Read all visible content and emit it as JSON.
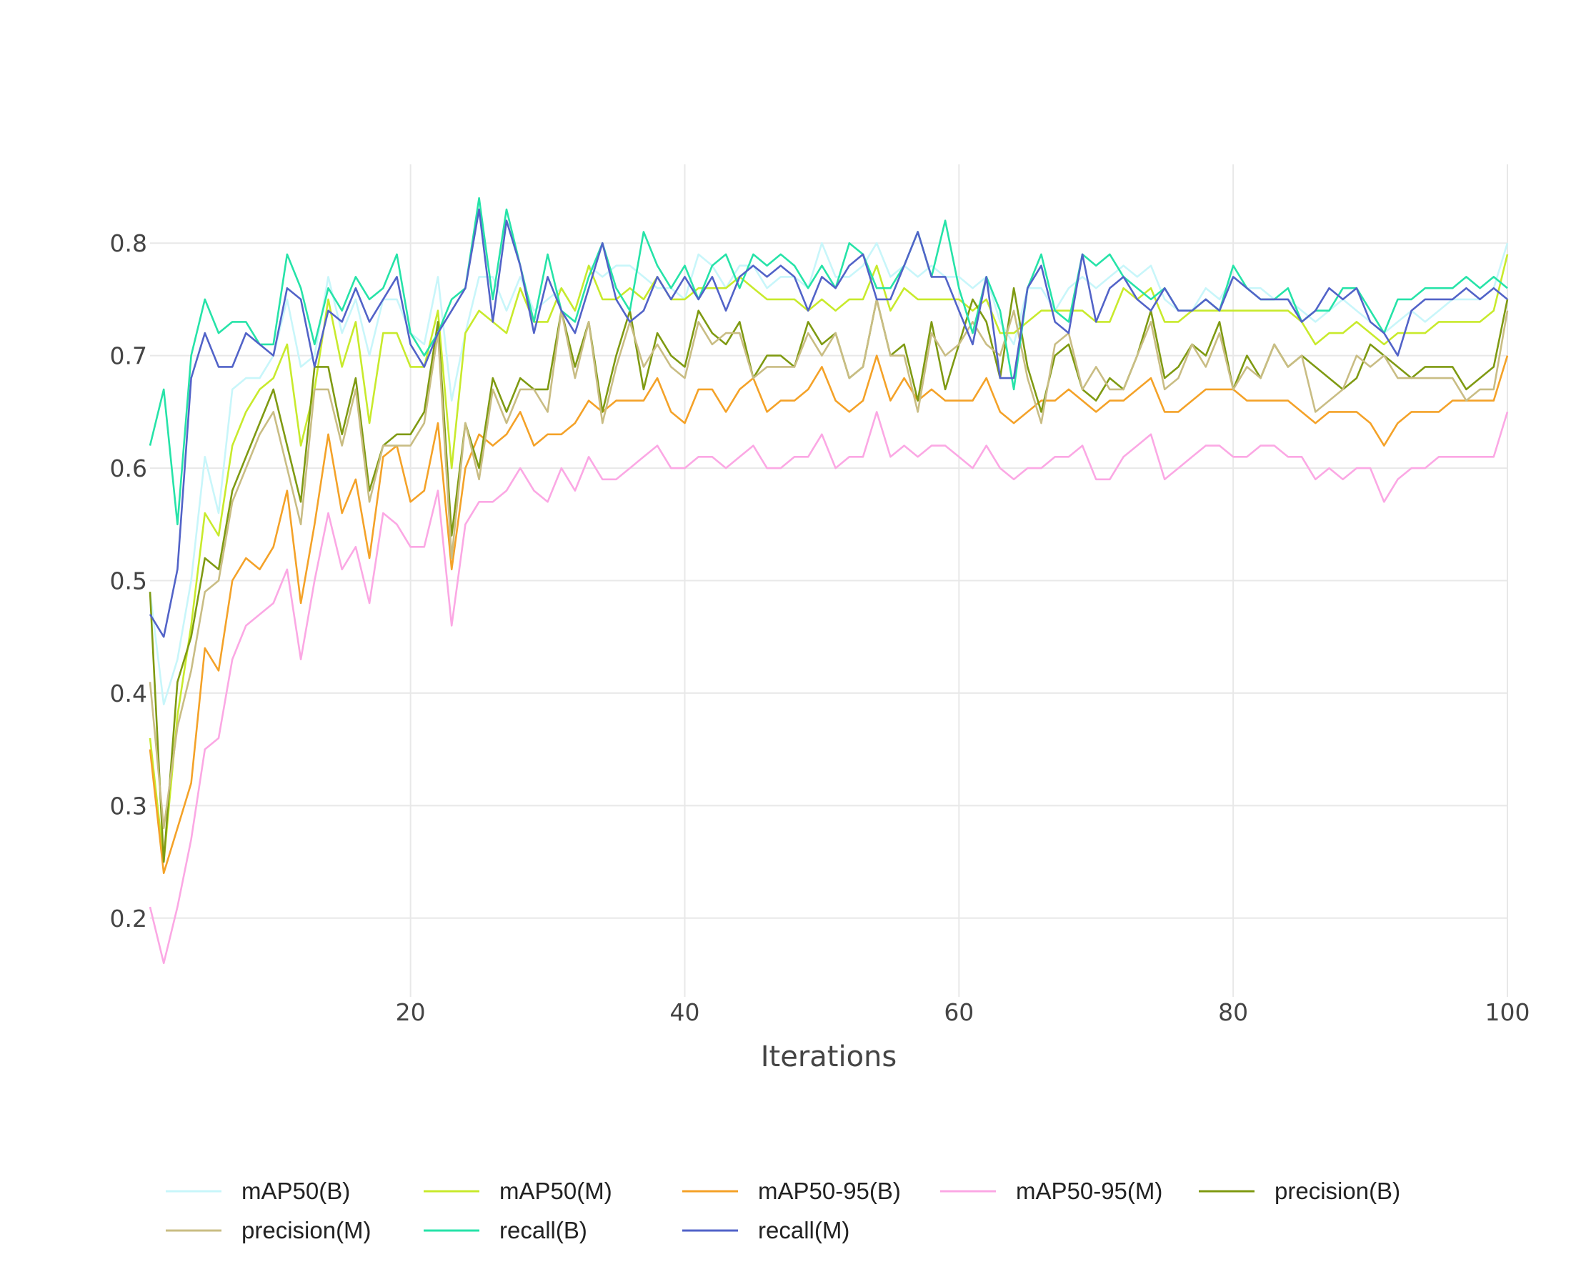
{
  "chart_data": {
    "type": "line",
    "title": "",
    "xlabel": "Iterations",
    "ylabel": "",
    "xlim": [
      1,
      100
    ],
    "ylim": [
      0.13,
      0.87
    ],
    "x_ticks": [
      20,
      40,
      60,
      80,
      100
    ],
    "y_ticks": [
      0.2,
      0.3,
      0.4,
      0.5,
      0.6,
      0.7,
      0.8
    ],
    "grid": true,
    "legend_placement": "bottom",
    "x": [
      1,
      2,
      3,
      4,
      5,
      6,
      7,
      8,
      9,
      10,
      11,
      12,
      13,
      14,
      15,
      16,
      17,
      18,
      19,
      20,
      21,
      22,
      23,
      24,
      25,
      26,
      27,
      28,
      29,
      30,
      31,
      32,
      33,
      34,
      35,
      36,
      37,
      38,
      39,
      40,
      41,
      42,
      43,
      44,
      45,
      46,
      47,
      48,
      49,
      50,
      51,
      52,
      53,
      54,
      55,
      56,
      57,
      58,
      59,
      60,
      61,
      62,
      63,
      64,
      65,
      66,
      67,
      68,
      69,
      70,
      71,
      72,
      73,
      74,
      75,
      76,
      77,
      78,
      79,
      80,
      81,
      82,
      83,
      84,
      85,
      86,
      87,
      88,
      89,
      90,
      91,
      92,
      93,
      94,
      95,
      96,
      97,
      98,
      99,
      100
    ],
    "series": [
      {
        "name": "mAP50(B)",
        "color": "#c8f6fa",
        "values": [
          0.49,
          0.39,
          0.43,
          0.5,
          0.61,
          0.56,
          0.67,
          0.68,
          0.68,
          0.7,
          0.75,
          0.69,
          0.7,
          0.77,
          0.72,
          0.75,
          0.7,
          0.75,
          0.75,
          0.72,
          0.71,
          0.77,
          0.66,
          0.72,
          0.77,
          0.77,
          0.74,
          0.77,
          0.74,
          0.75,
          0.76,
          0.74,
          0.78,
          0.77,
          0.78,
          0.78,
          0.77,
          0.76,
          0.76,
          0.75,
          0.79,
          0.78,
          0.76,
          0.78,
          0.78,
          0.76,
          0.77,
          0.77,
          0.76,
          0.8,
          0.77,
          0.77,
          0.78,
          0.8,
          0.77,
          0.78,
          0.77,
          0.78,
          0.77,
          0.77,
          0.76,
          0.77,
          0.73,
          0.71,
          0.76,
          0.76,
          0.74,
          0.76,
          0.77,
          0.76,
          0.77,
          0.78,
          0.77,
          0.78,
          0.75,
          0.74,
          0.74,
          0.76,
          0.75,
          0.77,
          0.76,
          0.76,
          0.75,
          0.75,
          0.74,
          0.73,
          0.74,
          0.75,
          0.74,
          0.73,
          0.72,
          0.73,
          0.74,
          0.73,
          0.74,
          0.75,
          0.75,
          0.75,
          0.76,
          0.8
        ]
      },
      {
        "name": "mAP50(M)",
        "color": "#c8ea2c",
        "values": [
          0.36,
          0.25,
          0.38,
          0.46,
          0.56,
          0.54,
          0.62,
          0.65,
          0.67,
          0.68,
          0.71,
          0.62,
          0.67,
          0.75,
          0.69,
          0.73,
          0.64,
          0.72,
          0.72,
          0.69,
          0.69,
          0.74,
          0.6,
          0.72,
          0.74,
          0.73,
          0.72,
          0.76,
          0.73,
          0.73,
          0.76,
          0.74,
          0.78,
          0.75,
          0.75,
          0.76,
          0.75,
          0.77,
          0.75,
          0.75,
          0.76,
          0.76,
          0.76,
          0.77,
          0.76,
          0.75,
          0.75,
          0.75,
          0.74,
          0.75,
          0.74,
          0.75,
          0.75,
          0.78,
          0.74,
          0.76,
          0.75,
          0.75,
          0.75,
          0.75,
          0.74,
          0.75,
          0.72,
          0.72,
          0.73,
          0.74,
          0.74,
          0.74,
          0.74,
          0.73,
          0.73,
          0.76,
          0.75,
          0.76,
          0.73,
          0.73,
          0.74,
          0.74,
          0.74,
          0.74,
          0.74,
          0.74,
          0.74,
          0.74,
          0.73,
          0.71,
          0.72,
          0.72,
          0.73,
          0.72,
          0.71,
          0.72,
          0.72,
          0.72,
          0.73,
          0.73,
          0.73,
          0.73,
          0.74,
          0.79
        ]
      },
      {
        "name": "mAP50-95(B)",
        "color": "#f4a228",
        "values": [
          0.35,
          0.24,
          0.28,
          0.32,
          0.44,
          0.42,
          0.5,
          0.52,
          0.51,
          0.53,
          0.58,
          0.48,
          0.55,
          0.63,
          0.56,
          0.59,
          0.52,
          0.61,
          0.62,
          0.57,
          0.58,
          0.64,
          0.51,
          0.6,
          0.63,
          0.62,
          0.63,
          0.65,
          0.62,
          0.63,
          0.63,
          0.64,
          0.66,
          0.65,
          0.66,
          0.66,
          0.66,
          0.68,
          0.65,
          0.64,
          0.67,
          0.67,
          0.65,
          0.67,
          0.68,
          0.65,
          0.66,
          0.66,
          0.67,
          0.69,
          0.66,
          0.65,
          0.66,
          0.7,
          0.66,
          0.68,
          0.66,
          0.67,
          0.66,
          0.66,
          0.66,
          0.68,
          0.65,
          0.64,
          0.65,
          0.66,
          0.66,
          0.67,
          0.66,
          0.65,
          0.66,
          0.66,
          0.67,
          0.68,
          0.65,
          0.65,
          0.66,
          0.67,
          0.67,
          0.67,
          0.66,
          0.66,
          0.66,
          0.66,
          0.65,
          0.64,
          0.65,
          0.65,
          0.65,
          0.64,
          0.62,
          0.64,
          0.65,
          0.65,
          0.65,
          0.66,
          0.66,
          0.66,
          0.66,
          0.7
        ]
      },
      {
        "name": "mAP50-95(M)",
        "color": "#fba8e4",
        "values": [
          0.21,
          0.16,
          0.21,
          0.27,
          0.35,
          0.36,
          0.43,
          0.46,
          0.47,
          0.48,
          0.51,
          0.43,
          0.5,
          0.56,
          0.51,
          0.53,
          0.48,
          0.56,
          0.55,
          0.53,
          0.53,
          0.58,
          0.46,
          0.55,
          0.57,
          0.57,
          0.58,
          0.6,
          0.58,
          0.57,
          0.6,
          0.58,
          0.61,
          0.59,
          0.59,
          0.6,
          0.61,
          0.62,
          0.6,
          0.6,
          0.61,
          0.61,
          0.6,
          0.61,
          0.62,
          0.6,
          0.6,
          0.61,
          0.61,
          0.63,
          0.6,
          0.61,
          0.61,
          0.65,
          0.61,
          0.62,
          0.61,
          0.62,
          0.62,
          0.61,
          0.6,
          0.62,
          0.6,
          0.59,
          0.6,
          0.6,
          0.61,
          0.61,
          0.62,
          0.59,
          0.59,
          0.61,
          0.62,
          0.63,
          0.59,
          0.6,
          0.61,
          0.62,
          0.62,
          0.61,
          0.61,
          0.62,
          0.62,
          0.61,
          0.61,
          0.59,
          0.6,
          0.59,
          0.6,
          0.6,
          0.57,
          0.59,
          0.6,
          0.6,
          0.61,
          0.61,
          0.61,
          0.61,
          0.61,
          0.65
        ]
      },
      {
        "name": "precision(B)",
        "color": "#7f9a12",
        "values": [
          0.49,
          0.25,
          0.41,
          0.45,
          0.52,
          0.51,
          0.58,
          0.61,
          0.64,
          0.67,
          0.62,
          0.57,
          0.69,
          0.69,
          0.63,
          0.68,
          0.58,
          0.62,
          0.63,
          0.63,
          0.65,
          0.73,
          0.54,
          0.64,
          0.6,
          0.68,
          0.65,
          0.68,
          0.67,
          0.67,
          0.74,
          0.69,
          0.73,
          0.65,
          0.7,
          0.74,
          0.67,
          0.72,
          0.7,
          0.69,
          0.74,
          0.72,
          0.71,
          0.73,
          0.68,
          0.7,
          0.7,
          0.69,
          0.73,
          0.71,
          0.72,
          0.68,
          0.69,
          0.75,
          0.7,
          0.71,
          0.66,
          0.73,
          0.67,
          0.71,
          0.75,
          0.73,
          0.68,
          0.76,
          0.69,
          0.65,
          0.7,
          0.71,
          0.67,
          0.66,
          0.68,
          0.67,
          0.7,
          0.74,
          0.68,
          0.69,
          0.71,
          0.7,
          0.73,
          0.67,
          0.7,
          0.68,
          0.71,
          0.69,
          0.7,
          0.69,
          0.68,
          0.67,
          0.68,
          0.71,
          0.7,
          0.69,
          0.68,
          0.69,
          0.69,
          0.69,
          0.67,
          0.68,
          0.69,
          0.75
        ]
      },
      {
        "name": "precision(M)",
        "color": "#c9bd84",
        "values": [
          0.41,
          0.28,
          0.37,
          0.42,
          0.49,
          0.5,
          0.57,
          0.6,
          0.63,
          0.65,
          0.6,
          0.55,
          0.67,
          0.67,
          0.62,
          0.67,
          0.57,
          0.62,
          0.62,
          0.62,
          0.64,
          0.72,
          0.52,
          0.64,
          0.59,
          0.67,
          0.64,
          0.67,
          0.67,
          0.65,
          0.74,
          0.68,
          0.73,
          0.64,
          0.69,
          0.73,
          0.69,
          0.71,
          0.69,
          0.68,
          0.73,
          0.71,
          0.72,
          0.72,
          0.68,
          0.69,
          0.69,
          0.69,
          0.72,
          0.7,
          0.72,
          0.68,
          0.69,
          0.75,
          0.7,
          0.7,
          0.65,
          0.72,
          0.7,
          0.71,
          0.73,
          0.71,
          0.7,
          0.74,
          0.68,
          0.64,
          0.71,
          0.72,
          0.67,
          0.69,
          0.67,
          0.67,
          0.7,
          0.73,
          0.67,
          0.68,
          0.71,
          0.69,
          0.72,
          0.67,
          0.69,
          0.68,
          0.71,
          0.69,
          0.7,
          0.65,
          0.66,
          0.67,
          0.7,
          0.69,
          0.7,
          0.68,
          0.68,
          0.68,
          0.68,
          0.68,
          0.66,
          0.67,
          0.67,
          0.74
        ]
      },
      {
        "name": "recall(B)",
        "color": "#26e3a8",
        "values": [
          0.62,
          0.67,
          0.55,
          0.7,
          0.75,
          0.72,
          0.73,
          0.73,
          0.71,
          0.71,
          0.79,
          0.76,
          0.71,
          0.76,
          0.74,
          0.77,
          0.75,
          0.76,
          0.79,
          0.72,
          0.7,
          0.72,
          0.75,
          0.76,
          0.84,
          0.75,
          0.83,
          0.78,
          0.73,
          0.79,
          0.74,
          0.73,
          0.77,
          0.8,
          0.76,
          0.74,
          0.81,
          0.78,
          0.76,
          0.78,
          0.75,
          0.78,
          0.79,
          0.76,
          0.79,
          0.78,
          0.79,
          0.78,
          0.76,
          0.78,
          0.76,
          0.8,
          0.79,
          0.76,
          0.76,
          0.78,
          0.81,
          0.77,
          0.82,
          0.76,
          0.72,
          0.77,
          0.74,
          0.67,
          0.76,
          0.79,
          0.74,
          0.73,
          0.79,
          0.78,
          0.79,
          0.77,
          0.76,
          0.75,
          0.76,
          0.74,
          0.74,
          0.75,
          0.74,
          0.78,
          0.76,
          0.75,
          0.75,
          0.76,
          0.73,
          0.74,
          0.74,
          0.76,
          0.76,
          0.74,
          0.72,
          0.75,
          0.75,
          0.76,
          0.76,
          0.76,
          0.77,
          0.76,
          0.77,
          0.76
        ]
      },
      {
        "name": "recall(M)",
        "color": "#5263c8",
        "values": [
          0.47,
          0.45,
          0.51,
          0.68,
          0.72,
          0.69,
          0.69,
          0.72,
          0.71,
          0.7,
          0.76,
          0.75,
          0.69,
          0.74,
          0.73,
          0.76,
          0.73,
          0.75,
          0.77,
          0.71,
          0.69,
          0.72,
          0.74,
          0.76,
          0.83,
          0.73,
          0.82,
          0.78,
          0.72,
          0.77,
          0.74,
          0.72,
          0.76,
          0.8,
          0.75,
          0.73,
          0.74,
          0.77,
          0.75,
          0.77,
          0.75,
          0.77,
          0.74,
          0.77,
          0.78,
          0.77,
          0.78,
          0.77,
          0.74,
          0.77,
          0.76,
          0.78,
          0.79,
          0.75,
          0.75,
          0.78,
          0.81,
          0.77,
          0.77,
          0.74,
          0.71,
          0.77,
          0.68,
          0.68,
          0.76,
          0.78,
          0.73,
          0.72,
          0.79,
          0.73,
          0.76,
          0.77,
          0.75,
          0.74,
          0.76,
          0.74,
          0.74,
          0.75,
          0.74,
          0.77,
          0.76,
          0.75,
          0.75,
          0.75,
          0.73,
          0.74,
          0.76,
          0.75,
          0.76,
          0.73,
          0.72,
          0.7,
          0.74,
          0.75,
          0.75,
          0.75,
          0.76,
          0.75,
          0.76,
          0.75
        ]
      }
    ]
  }
}
